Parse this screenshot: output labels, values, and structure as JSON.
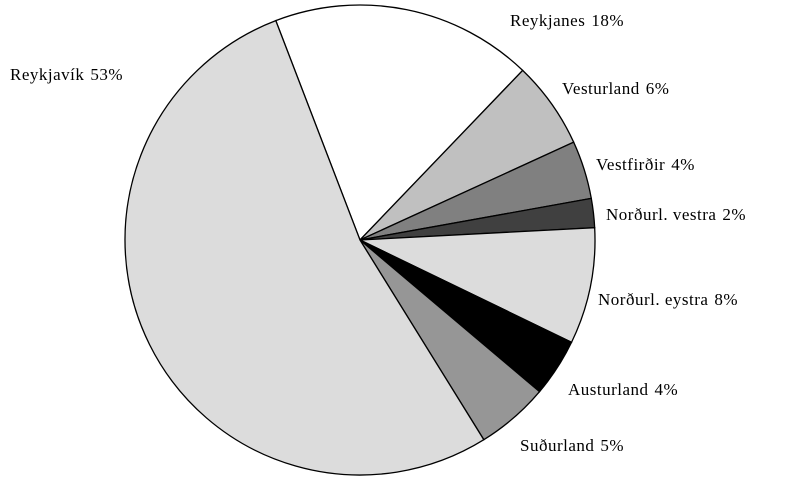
{
  "chart_data": {
    "type": "pie",
    "categories": [
      "Reykjanes",
      "Vesturland",
      "Vestfirðir",
      "Norðurl. vestra",
      "Norðurl. eystra",
      "Austurland",
      "Suðurland",
      "Reykjavík"
    ],
    "values": [
      18,
      6,
      4,
      2,
      8,
      4,
      5,
      53
    ],
    "value_labels": [
      "18%",
      "6%",
      "4%",
      "2%",
      "8%",
      "4%",
      "5%",
      "53%"
    ],
    "colors": [
      "#ffffff",
      "#c0c0c0",
      "#808080",
      "#404040",
      "#dcdcdc",
      "#000000",
      "#969696",
      "#dcdcdc"
    ]
  }
}
